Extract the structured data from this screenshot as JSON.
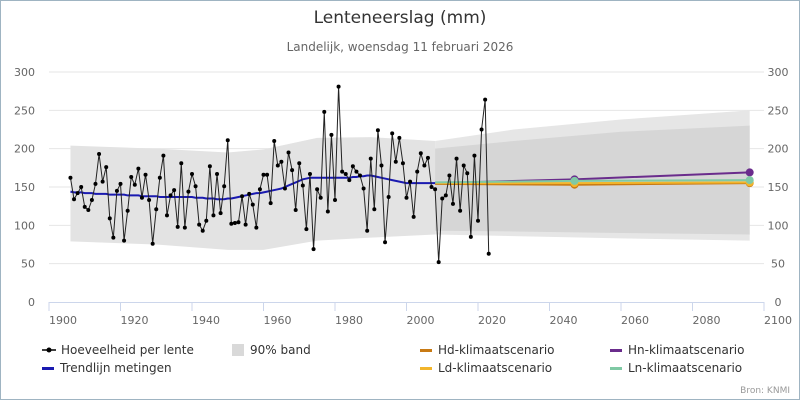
{
  "chart_data": {
    "type": "line",
    "title": "Lenteneerslag (mm)",
    "subtitle": "Landelijk, woensdag 11 februari 2026",
    "xlim": [
      1900,
      2100
    ],
    "ylim": [
      0,
      300
    ],
    "x_ticks": [
      "1900",
      "1920",
      "1940",
      "1960",
      "1980",
      "2000",
      "2020",
      "2040",
      "2060",
      "2080",
      "2100"
    ],
    "y_ticks": [
      "0",
      "50",
      "100",
      "150",
      "200",
      "250",
      "300"
    ],
    "grid": true,
    "legend_position": "bottom",
    "series": [
      {
        "name": "Hoeveelheid per lente",
        "color": "#000000",
        "start_year": 1906,
        "values": [
          162,
          134,
          142,
          150,
          124,
          120,
          133,
          154,
          193,
          157,
          176,
          109,
          84,
          145,
          154,
          80,
          119,
          163,
          153,
          174,
          136,
          166,
          133,
          76,
          121,
          162,
          191,
          113,
          139,
          146,
          98,
          181,
          97,
          144,
          167,
          151,
          101,
          93,
          106,
          177,
          113,
          167,
          116,
          151,
          211,
          102,
          103,
          104,
          138,
          101,
          141,
          127,
          97,
          147,
          166,
          166,
          129,
          210,
          178,
          183,
          148,
          195,
          172,
          120,
          181,
          152,
          95,
          167,
          69,
          147,
          136,
          248,
          118,
          218,
          133,
          281,
          170,
          167,
          159,
          177,
          170,
          165,
          148,
          93,
          187,
          121,
          224,
          178,
          78,
          137,
          220,
          183,
          214,
          181,
          136,
          157,
          111,
          170,
          194,
          178,
          188,
          150,
          147,
          52,
          135,
          139,
          165,
          128,
          187,
          119,
          178,
          168,
          85,
          191,
          106,
          225,
          264,
          63
        ]
      },
      {
        "name": "Trendlijn metingen",
        "color": "#1a1ab0",
        "start_year": 1906,
        "values": [
          144,
          143,
          143,
          143,
          142,
          142,
          142,
          141,
          141,
          141,
          141,
          140,
          140,
          140,
          140,
          140,
          139,
          139,
          139,
          139,
          138,
          138,
          138,
          138,
          138,
          137,
          137,
          137,
          137,
          137,
          137,
          137,
          137,
          137,
          137,
          136,
          136,
          136,
          135,
          135,
          135,
          134,
          134,
          134,
          135,
          135,
          136,
          137,
          138,
          139,
          140,
          141,
          142,
          142,
          143,
          144,
          145,
          146,
          147,
          148,
          150,
          152,
          154,
          156,
          158,
          160,
          161,
          162,
          162,
          162,
          162,
          162,
          162,
          162,
          162,
          162,
          162,
          162,
          162,
          163,
          163,
          164,
          164,
          165,
          165,
          164,
          163,
          162,
          161,
          160,
          159,
          158,
          157,
          156,
          155,
          155,
          155,
          155,
          155,
          155,
          155,
          155,
          155
        ]
      },
      {
        "name": "Hd-klimaatscenario",
        "color": "#c87a14",
        "years": [
          2008,
          2047,
          2096
        ],
        "values": [
          154,
          153,
          155
        ]
      },
      {
        "name": "Hn-klimaatscenario",
        "color": "#6a2c8c",
        "years": [
          2008,
          2047,
          2096
        ],
        "values": [
          155,
          160,
          169
        ]
      },
      {
        "name": "Ld-klimaatscenario",
        "color": "#f2b52b",
        "years": [
          2008,
          2047,
          2096
        ],
        "values": [
          155,
          155,
          156
        ]
      },
      {
        "name": "Ln-klimaatscenario",
        "color": "#7fc9a4",
        "years": [
          2008,
          2047,
          2096
        ],
        "values": [
          156,
          158,
          159
        ]
      }
    ],
    "band_90": {
      "name": "90% band",
      "years": [
        1906,
        1930,
        1950,
        1960,
        1975,
        1990,
        2008
      ],
      "upper": [
        204,
        200,
        195,
        199,
        214,
        215,
        210
      ],
      "lower": [
        79,
        75,
        68,
        68,
        80,
        84,
        88
      ]
    },
    "scenario_band": {
      "years": [
        2008,
        2030,
        2060,
        2096
      ],
      "upper_outer": [
        210,
        225,
        238,
        250
      ],
      "upper_inner": [
        200,
        210,
        222,
        230
      ],
      "lower_inner": [
        93,
        92,
        90,
        88
      ],
      "lower_outer": [
        88,
        86,
        83,
        80
      ]
    },
    "credit": "Bron: KNMI"
  }
}
